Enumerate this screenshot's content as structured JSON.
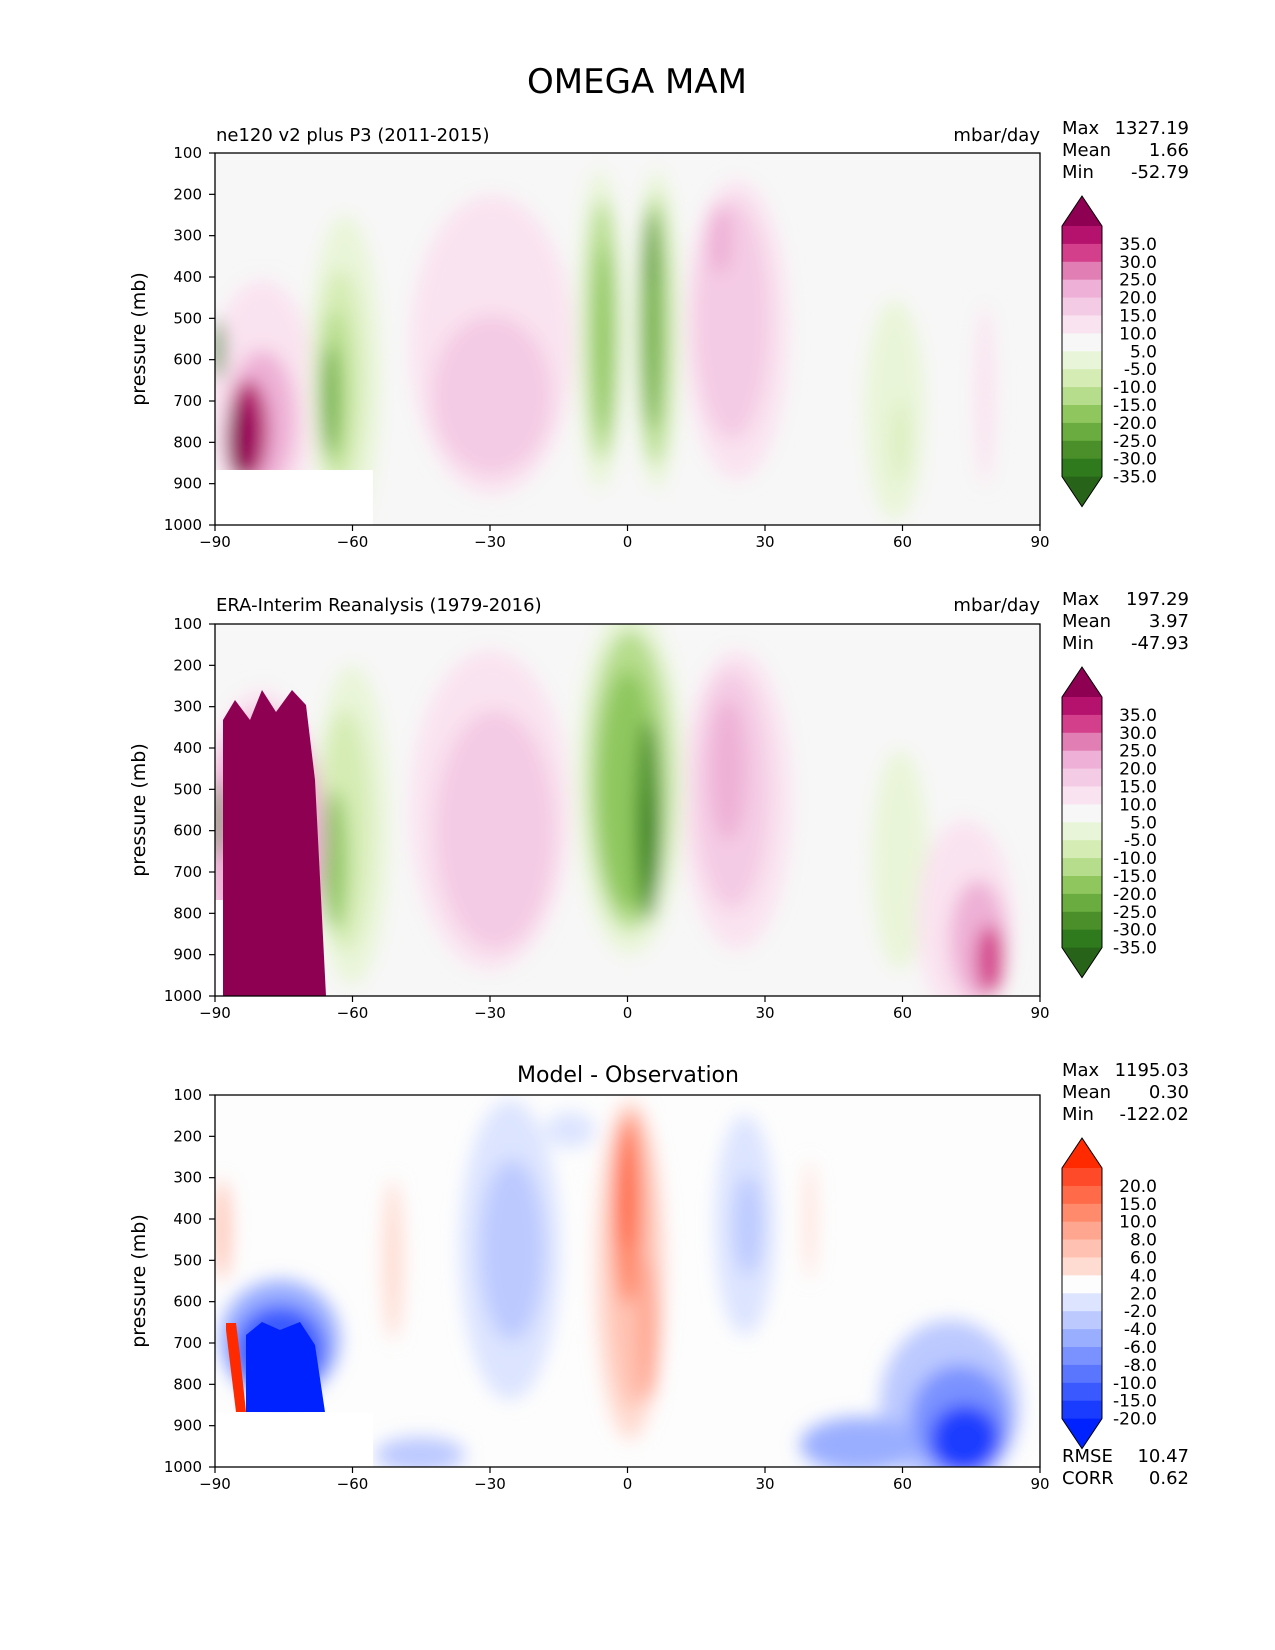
{
  "title": "OMEGA MAM",
  "chart_data": [
    {
      "type": "contour",
      "title": "ne120 v2 plus P3 (2011-2015)",
      "units": "mbar/day",
      "ylabel": "pressure (mb)",
      "xlim": [
        -90,
        90
      ],
      "ylim": [
        1000,
        100
      ],
      "xticks": [
        "−90",
        "−60",
        "−30",
        "0",
        "30",
        "60",
        "90"
      ],
      "yticks": [
        "100",
        "200",
        "300",
        "400",
        "500",
        "600",
        "700",
        "800",
        "900",
        "1000"
      ],
      "stats": [
        {
          "label": "Max",
          "value": "1327.19"
        },
        {
          "label": "Mean",
          "value": "1.66"
        },
        {
          "label": "Min",
          "value": "-52.79"
        }
      ],
      "colorbar": {
        "labels": [
          "35.0",
          "30.0",
          "25.0",
          "20.0",
          "15.0",
          "10.0",
          "5.0",
          "-5.0",
          "-10.0",
          "-15.0",
          "-20.0",
          "-25.0",
          "-30.0",
          "-35.0"
        ],
        "colors": [
          "#8e0152",
          "#b5126e",
          "#d43f8b",
          "#e17fb4",
          "#eeb0d6",
          "#f4cbe4",
          "#fae3f0",
          "#f7f7f7",
          "#e9f5d8",
          "#d5ecb4",
          "#b5dd8b",
          "#8fc75e",
          "#6aac3f",
          "#4a8f2a",
          "#2f7a1d",
          "#276419"
        ]
      },
      "features": [
        {
          "lat": -78,
          "p": 780,
          "value": 40
        },
        {
          "lat": -61,
          "p": 700,
          "value": -22
        },
        {
          "lat": -28,
          "p": 650,
          "value": 12
        },
        {
          "lat": -3,
          "p": 550,
          "value": -25
        },
        {
          "lat": 5,
          "p": 450,
          "value": -32
        },
        {
          "lat": 20,
          "p": 500,
          "value": 14
        },
        {
          "lat": 60,
          "p": 780,
          "value": -8
        }
      ]
    },
    {
      "type": "contour",
      "title": "ERA-Interim Reanalysis (1979-2016)",
      "units": "mbar/day",
      "ylabel": "pressure (mb)",
      "xlim": [
        -90,
        90
      ],
      "ylim": [
        1000,
        100
      ],
      "xticks": [
        "−90",
        "−60",
        "−30",
        "0",
        "30",
        "60",
        "90"
      ],
      "yticks": [
        "100",
        "200",
        "300",
        "400",
        "500",
        "600",
        "700",
        "800",
        "900",
        "1000"
      ],
      "stats": [
        {
          "label": "Max",
          "value": "197.29"
        },
        {
          "label": "Mean",
          "value": "3.97"
        },
        {
          "label": "Min",
          "value": "-47.93"
        }
      ],
      "colorbar": {
        "labels": [
          "35.0",
          "30.0",
          "25.0",
          "20.0",
          "15.0",
          "10.0",
          "5.0",
          "-5.0",
          "-10.0",
          "-15.0",
          "-20.0",
          "-25.0",
          "-30.0",
          "-35.0"
        ],
        "colors": [
          "#8e0152",
          "#b5126e",
          "#d43f8b",
          "#e17fb4",
          "#eeb0d6",
          "#f4cbe4",
          "#fae3f0",
          "#f7f7f7",
          "#e9f5d8",
          "#d5ecb4",
          "#b5dd8b",
          "#8fc75e",
          "#6aac3f",
          "#4a8f2a",
          "#2f7a1d",
          "#276419"
        ]
      },
      "features": [
        {
          "lat": -77,
          "p": 850,
          "value": 40
        },
        {
          "lat": -61,
          "p": 650,
          "value": -20
        },
        {
          "lat": -28,
          "p": 600,
          "value": 12
        },
        {
          "lat": 0,
          "p": 500,
          "value": -25
        },
        {
          "lat": 5,
          "p": 650,
          "value": -32
        },
        {
          "lat": 22,
          "p": 500,
          "value": 16
        },
        {
          "lat": 78,
          "p": 900,
          "value": 25
        }
      ]
    },
    {
      "type": "contour",
      "title": "Model - Observation",
      "ylabel": "pressure (mb)",
      "xlim": [
        -90,
        90
      ],
      "ylim": [
        1000,
        100
      ],
      "xticks": [
        "−90",
        "−60",
        "−30",
        "0",
        "30",
        "60",
        "90"
      ],
      "yticks": [
        "100",
        "200",
        "300",
        "400",
        "500",
        "600",
        "700",
        "800",
        "900",
        "1000"
      ],
      "stats": [
        {
          "label": "Max",
          "value": "1195.03"
        },
        {
          "label": "Mean",
          "value": "0.30"
        },
        {
          "label": "Min",
          "value": "-122.02"
        }
      ],
      "extra_stats": [
        {
          "label": "RMSE",
          "value": "10.47"
        },
        {
          "label": "CORR",
          "value": "0.62"
        }
      ],
      "colorbar": {
        "labels": [
          "20.0",
          "15.0",
          "10.0",
          "8.0",
          "6.0",
          "4.0",
          "2.0",
          "-2.0",
          "-4.0",
          "-6.0",
          "-8.0",
          "-10.0",
          "-15.0",
          "-20.0"
        ],
        "colors": [
          "#ff2a00",
          "#ff4a2a",
          "#ff6a48",
          "#ff8a6c",
          "#ffa690",
          "#ffc2b2",
          "#ffdcd2",
          "#fdfdfd",
          "#dce4ff",
          "#bcc9ff",
          "#9aaeff",
          "#7a92ff",
          "#5a76ff",
          "#3a5aff",
          "#1a3cff",
          "#0022ff"
        ]
      },
      "features": [
        {
          "lat": -85,
          "p": 760,
          "value": 22
        },
        {
          "lat": -74,
          "p": 760,
          "value": -22
        },
        {
          "lat": -25,
          "p": 450,
          "value": -4
        },
        {
          "lat": 1,
          "p": 350,
          "value": 12
        },
        {
          "lat": 5,
          "p": 700,
          "value": 8
        },
        {
          "lat": 25,
          "p": 450,
          "value": -5
        },
        {
          "lat": 78,
          "p": 900,
          "value": -20
        }
      ]
    }
  ]
}
